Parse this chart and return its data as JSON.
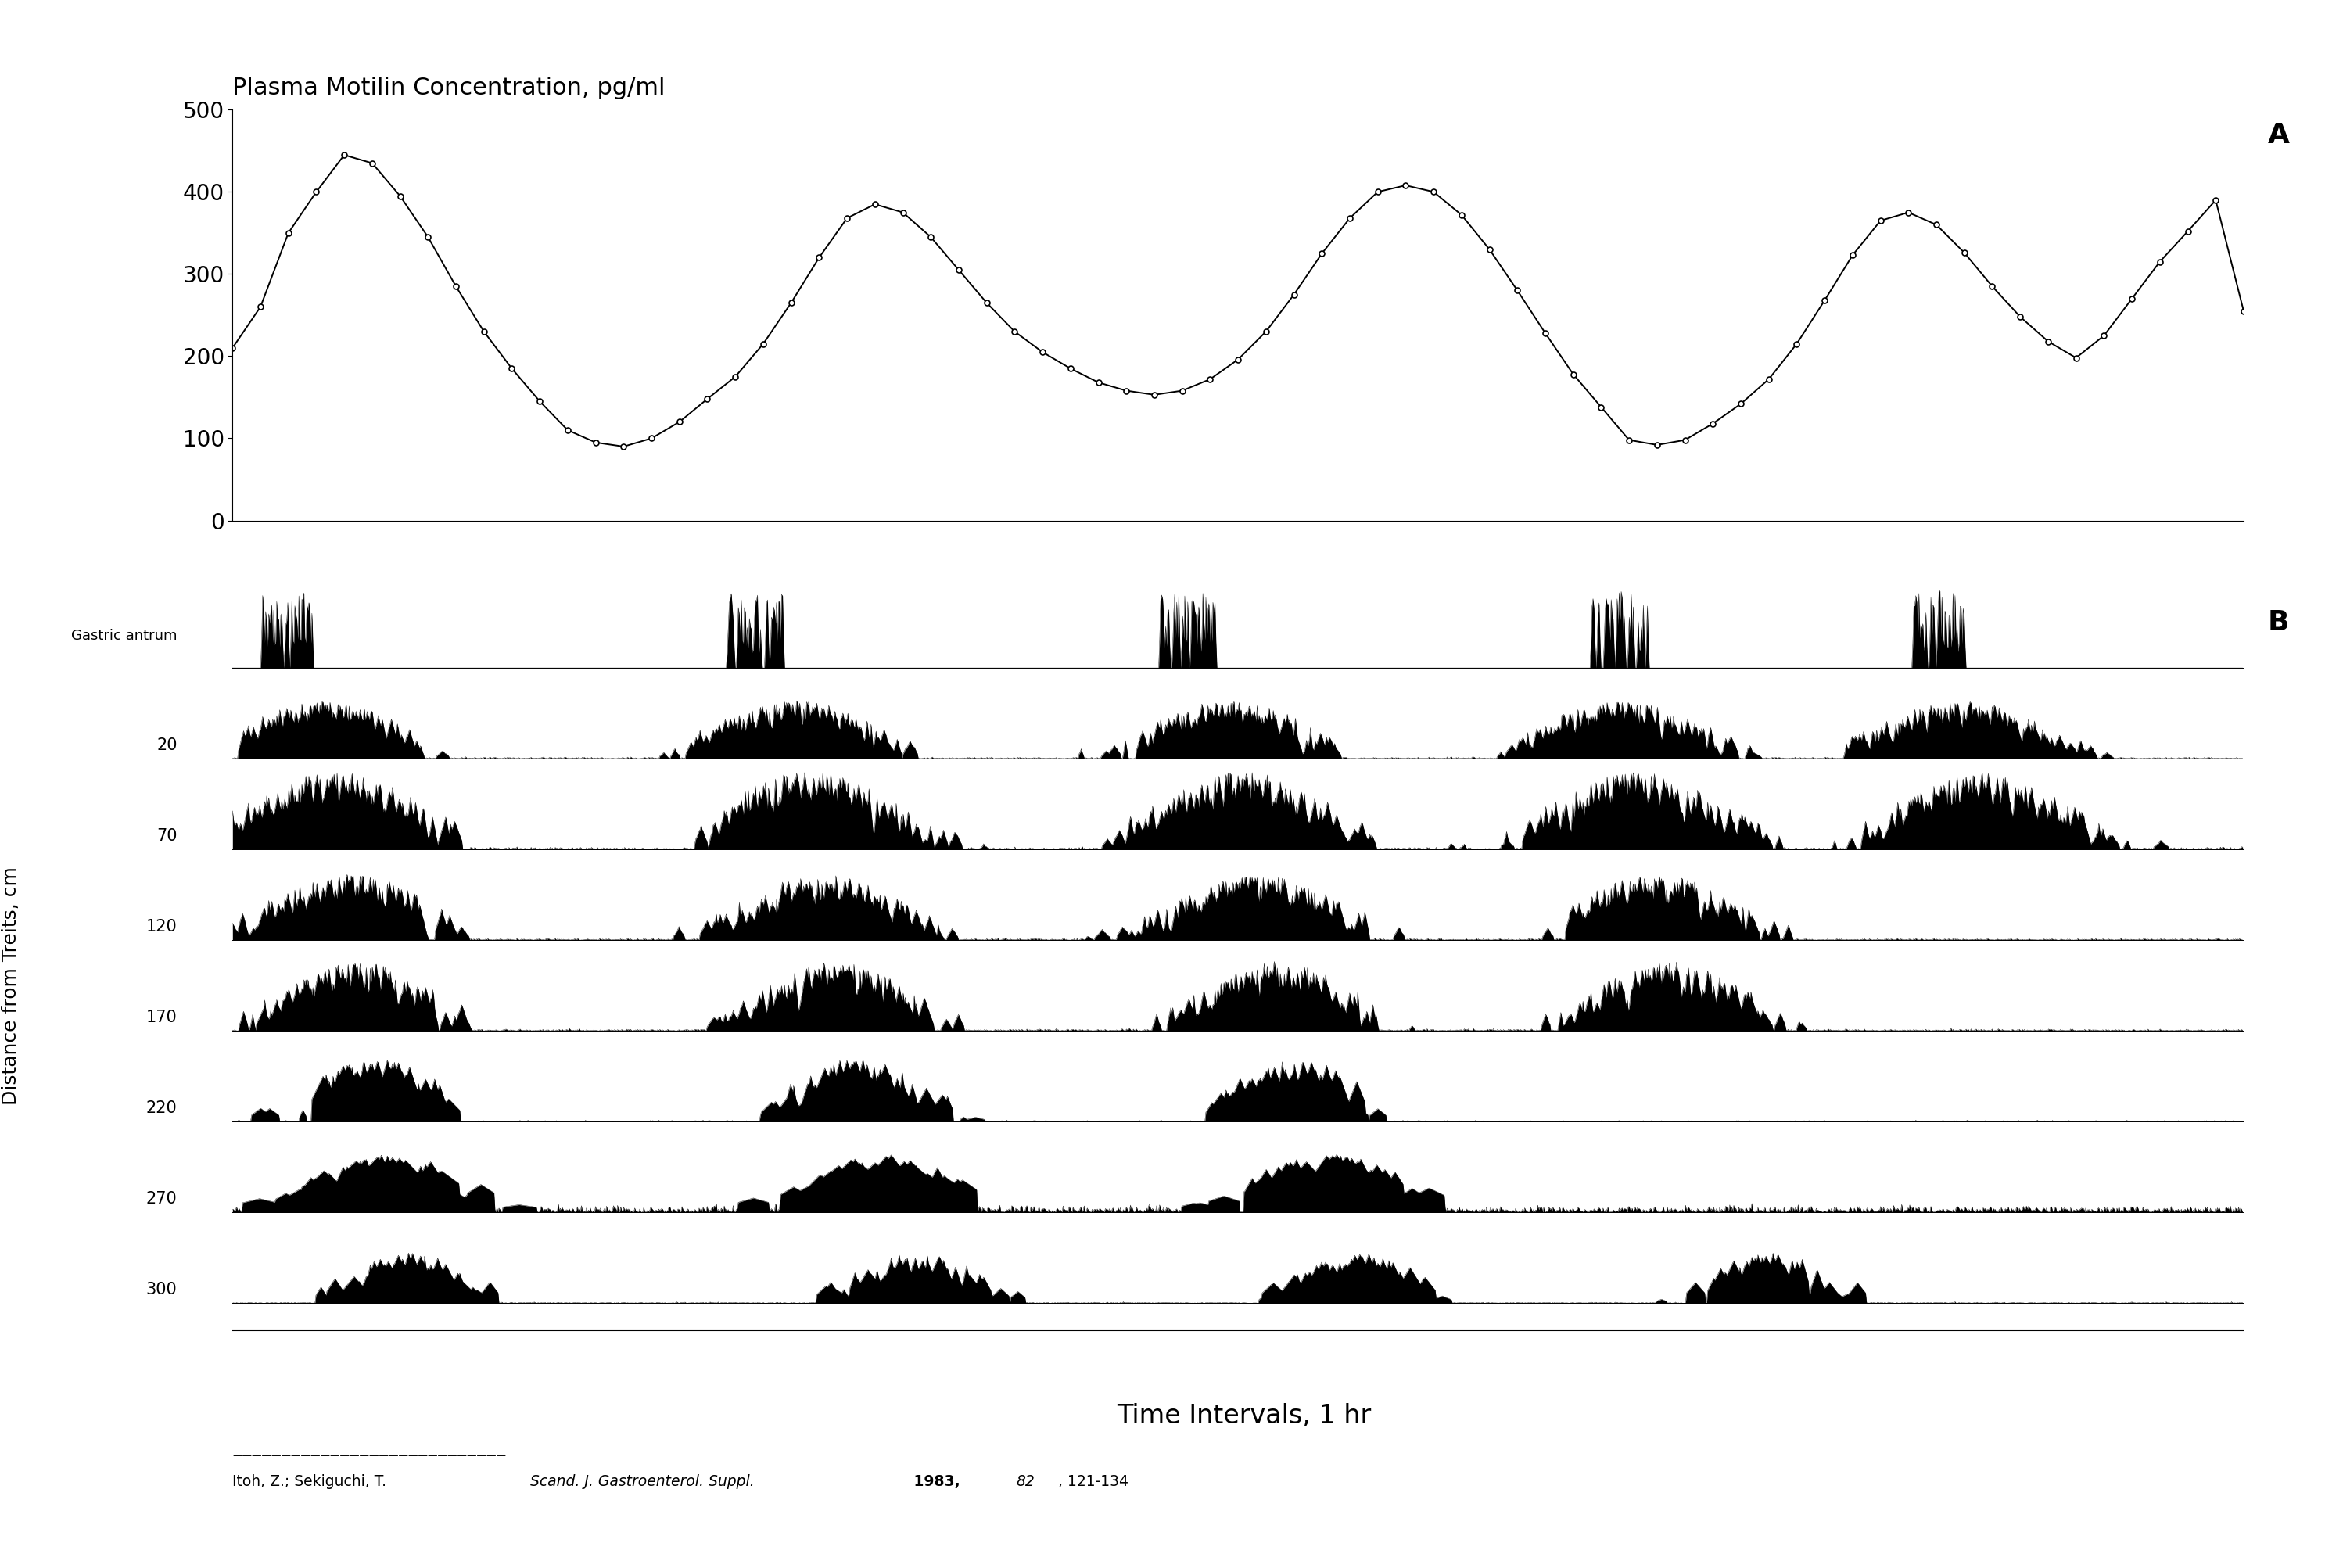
{
  "title": "Plasma Motilin Concentration, pg/ml",
  "panel_A_label": "A",
  "panel_B_label": "B",
  "xlabel": "Time Intervals, 1 hr",
  "ylabel_B": "Distance from Treits, cm",
  "ylim_A": [
    0,
    500
  ],
  "yticks_A": [
    0,
    100,
    200,
    300,
    400,
    500
  ],
  "motilin_x": [
    0,
    1,
    2,
    3,
    4,
    5,
    6,
    7,
    8,
    9,
    10,
    11,
    12,
    13,
    14,
    15,
    16,
    17,
    18,
    19,
    20,
    21,
    22,
    23,
    24,
    25,
    26,
    27,
    28,
    29,
    30,
    31,
    32,
    33,
    34,
    35,
    36,
    37,
    38,
    39,
    40,
    41,
    42,
    43,
    44,
    45,
    46,
    47,
    48,
    49,
    50,
    51,
    52,
    53,
    54,
    55,
    56,
    57,
    58,
    59,
    60,
    61,
    62,
    63,
    64,
    65,
    66,
    67,
    68,
    69,
    70,
    71,
    72
  ],
  "motilin_y": [
    210,
    260,
    350,
    400,
    445,
    435,
    395,
    345,
    285,
    230,
    185,
    145,
    110,
    95,
    90,
    100,
    120,
    148,
    175,
    215,
    265,
    320,
    368,
    385,
    375,
    345,
    305,
    265,
    230,
    205,
    185,
    168,
    158,
    153,
    158,
    172,
    196,
    230,
    275,
    325,
    368,
    400,
    408,
    400,
    372,
    330,
    280,
    228,
    178,
    138,
    98,
    92,
    98,
    118,
    142,
    172,
    215,
    268,
    323,
    365,
    375,
    360,
    326,
    285,
    248,
    218,
    198,
    225,
    270,
    315,
    352,
    390,
    255
  ],
  "track_labels": [
    "Gastric antrum",
    "20",
    "70",
    "120",
    "170",
    "220",
    "270",
    "300"
  ],
  "antrum_burst_centers": [
    55,
    520,
    950,
    1380,
    1700
  ],
  "burst_centers_20": [
    90,
    560,
    990,
    1380,
    1720
  ],
  "burst_centers_70": [
    100,
    575,
    1005,
    1395,
    1740
  ],
  "burst_centers_120": [
    115,
    585,
    1020,
    1415
  ],
  "burst_centers_170": [
    125,
    600,
    1040,
    1430
  ],
  "burst_centers_220": [
    140,
    620,
    1060
  ],
  "burst_centers_270": [
    155,
    650,
    1090
  ],
  "burst_centers_300": [
    175,
    680,
    1120,
    1530
  ],
  "background_color": "#ffffff",
  "line_color": "#000000",
  "figure_width": 29.73,
  "figure_height": 20.05
}
